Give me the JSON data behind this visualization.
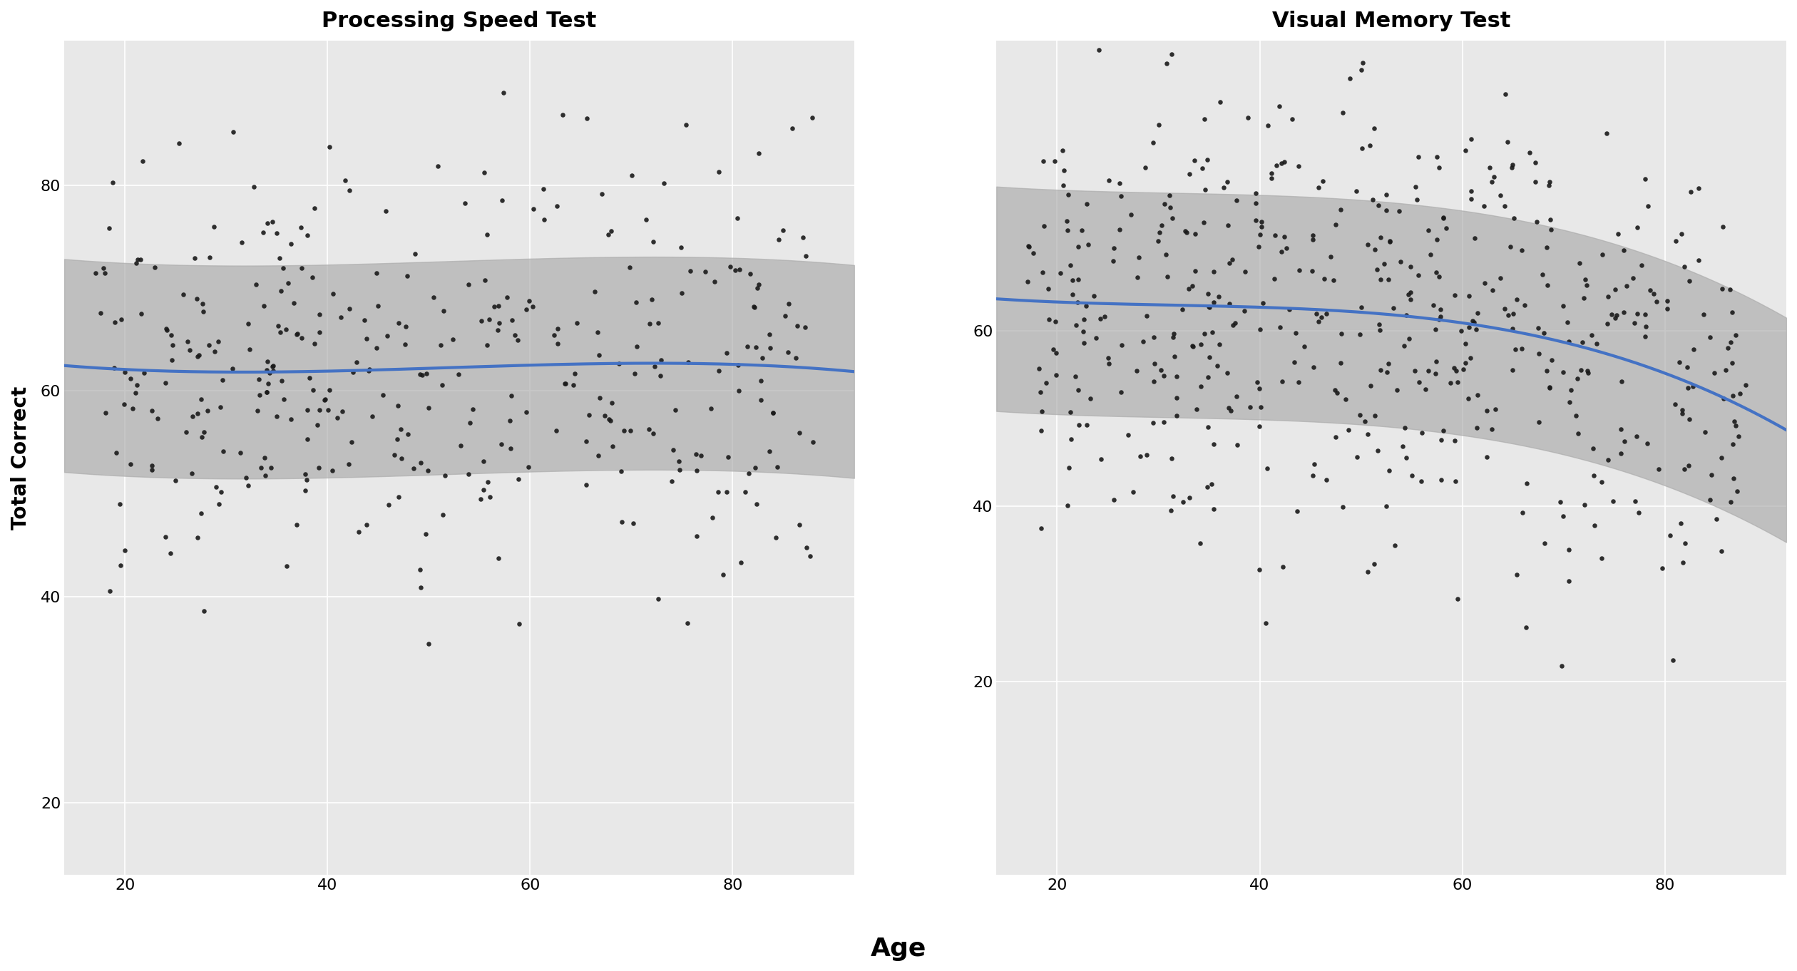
{
  "title1": "Processing Speed Test",
  "title2": "Visual Memory Test",
  "xlabel": "Age",
  "ylabel": "Total Correct",
  "bg_color": "#e8e8e8",
  "fig_bg_color": "#ffffff",
  "dot_color": "#1a1a1a",
  "line_color": "#4472C4",
  "ci_color": "#aaaaaa",
  "grid_color": "#ffffff",
  "title_fontsize": 22,
  "label_fontsize": 20,
  "tick_fontsize": 16,
  "dot_size": 22,
  "line_width": 3.0,
  "pst_xlim": [
    14,
    92
  ],
  "pst_ylim": [
    13,
    94
  ],
  "vmt_xlim": [
    14,
    92
  ],
  "vmt_ylim": [
    -2,
    93
  ],
  "pst_xticks": [
    20,
    40,
    60,
    80
  ],
  "pst_yticks": [
    20,
    40,
    60,
    80
  ],
  "vmt_xticks": [
    20,
    40,
    60,
    80
  ],
  "vmt_yticks": [
    20,
    40,
    60
  ],
  "pst_curve_a": 62.5,
  "pst_curve_b": -0.00015,
  "pst_curve_c": -4.5e-06,
  "pst_noise_sd": 10.0,
  "vmt_curve_a": 64.5,
  "vmt_curve_b": -0.0025,
  "vmt_curve_c": -8e-06,
  "vmt_noise_sd": 13.0,
  "seed1": 77,
  "seed2": 55,
  "n_pst": 370,
  "n_vmt": 520,
  "ci_t_alpha": 0.05,
  "fit_degree": 3
}
